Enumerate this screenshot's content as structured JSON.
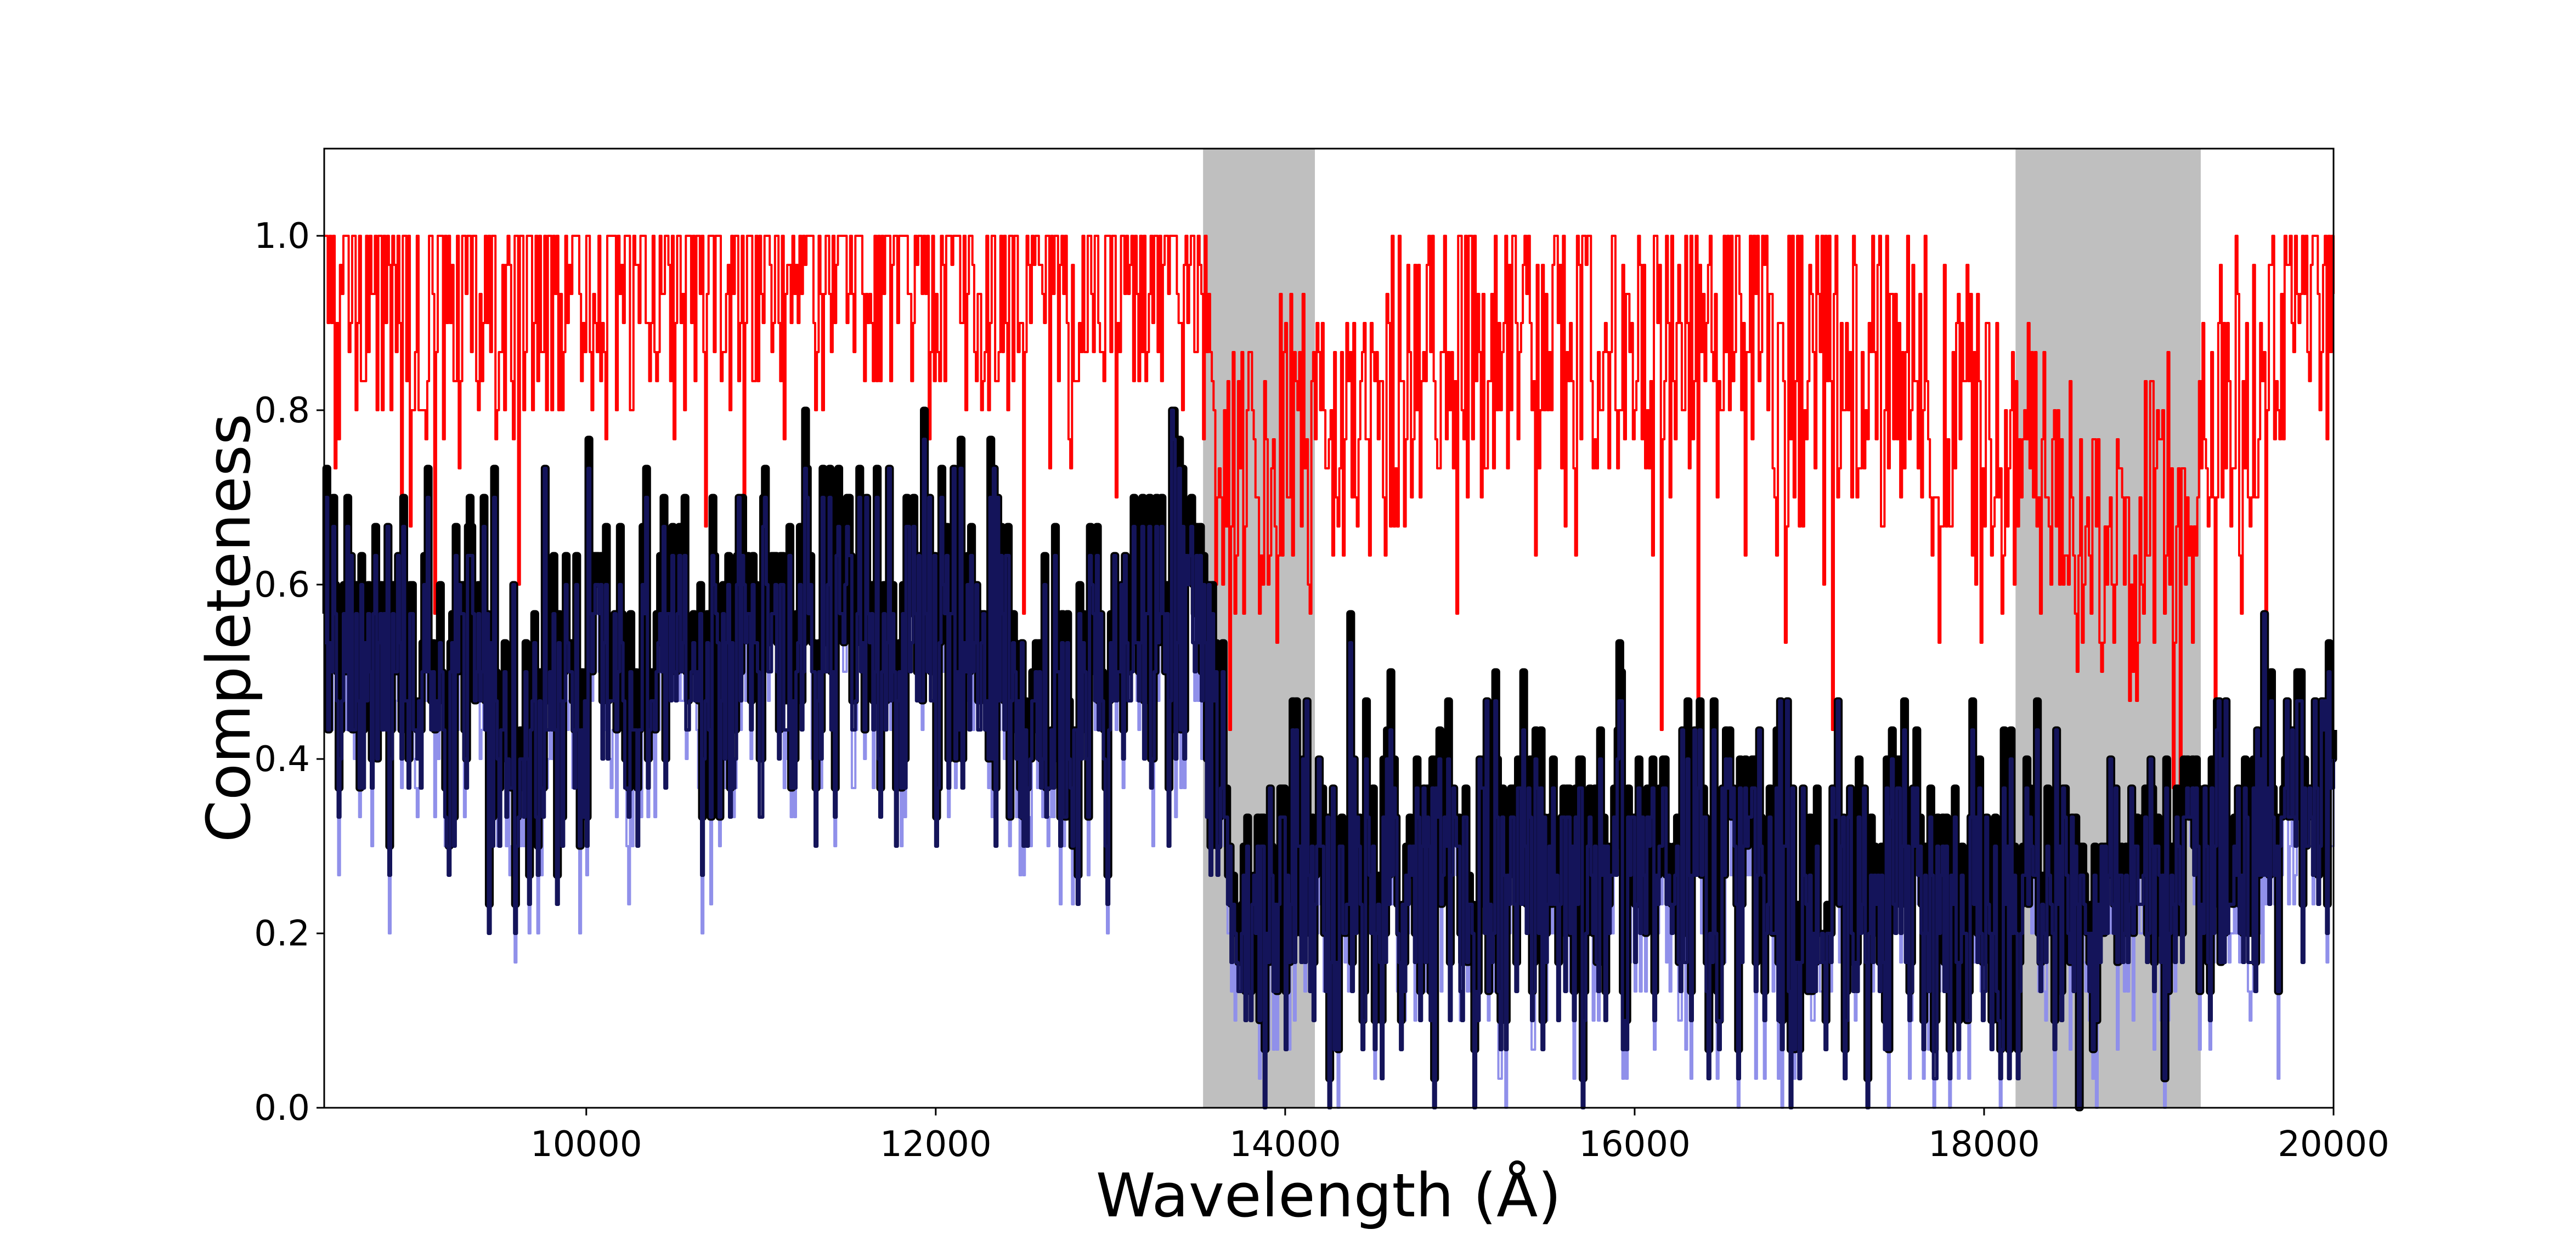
{
  "chart_data": {
    "type": "line",
    "title": "",
    "xlabel": "Wavelength (Å)",
    "ylabel": "Completeness",
    "xlim": [
      8500,
      20000
    ],
    "ylim": [
      0.0,
      1.1
    ],
    "x_ticks": [
      10000,
      12000,
      14000,
      16000,
      18000,
      20000
    ],
    "y_ticks": [
      0.0,
      0.2,
      0.4,
      0.6,
      0.8,
      1.0
    ],
    "x_tick_labels": [
      "10000",
      "12000",
      "14000",
      "16000",
      "18000",
      "20000"
    ],
    "y_tick_labels": [
      "0.0",
      "0.2",
      "0.4",
      "0.6",
      "0.8",
      "1.0"
    ],
    "grid": false,
    "shaded_regions": [
      {
        "x_start": 13530,
        "x_end": 14170,
        "color": "#bfbfbf"
      },
      {
        "x_start": 18180,
        "x_end": 19240,
        "color": "#bfbfbf"
      }
    ],
    "series": [
      {
        "color": "#ff0000",
        "line_width": 4,
        "profile_x": [
          8500,
          8900,
          9500,
          10500,
          11500,
          12500,
          13500,
          13600,
          14200,
          15000,
          16000,
          17000,
          17500,
          18200,
          18800,
          19300,
          19600,
          20000
        ],
        "profile_y": [
          0.86,
          0.89,
          0.88,
          0.91,
          0.93,
          0.9,
          0.94,
          0.62,
          0.72,
          0.8,
          0.83,
          0.79,
          0.8,
          0.66,
          0.56,
          0.7,
          0.8,
          0.9
        ]
      },
      {
        "color": "#9090ea",
        "line_width": 4,
        "profile_x": [
          8500,
          9500,
          11000,
          12000,
          12800,
          13500,
          13700,
          14500,
          15500,
          16500,
          17500,
          18200,
          19000,
          19500,
          20000
        ],
        "profile_y": [
          0.5,
          0.42,
          0.5,
          0.5,
          0.42,
          0.55,
          0.2,
          0.26,
          0.22,
          0.24,
          0.2,
          0.24,
          0.22,
          0.24,
          0.34
        ],
        "amplitude": 0.22
      },
      {
        "color": "#000000",
        "line_width": 13,
        "profile_x": [
          8500,
          9500,
          11000,
          12000,
          12800,
          13500,
          13700,
          14500,
          15500,
          16500,
          17500,
          18200,
          19000,
          19500,
          20000
        ],
        "profile_y": [
          0.55,
          0.48,
          0.57,
          0.55,
          0.48,
          0.6,
          0.25,
          0.3,
          0.28,
          0.3,
          0.26,
          0.28,
          0.27,
          0.3,
          0.4
        ],
        "amplitude": 0.24
      },
      {
        "color": "#14145a",
        "line_width": 6,
        "profile_x": [
          8500,
          9500,
          11000,
          12000,
          12800,
          13500,
          13700,
          14500,
          15500,
          16500,
          17500,
          18200,
          19000,
          19500,
          20000
        ],
        "profile_y": [
          0.52,
          0.45,
          0.53,
          0.52,
          0.45,
          0.57,
          0.22,
          0.27,
          0.25,
          0.27,
          0.23,
          0.25,
          0.24,
          0.27,
          0.37
        ],
        "amplitude": 0.22
      }
    ]
  }
}
